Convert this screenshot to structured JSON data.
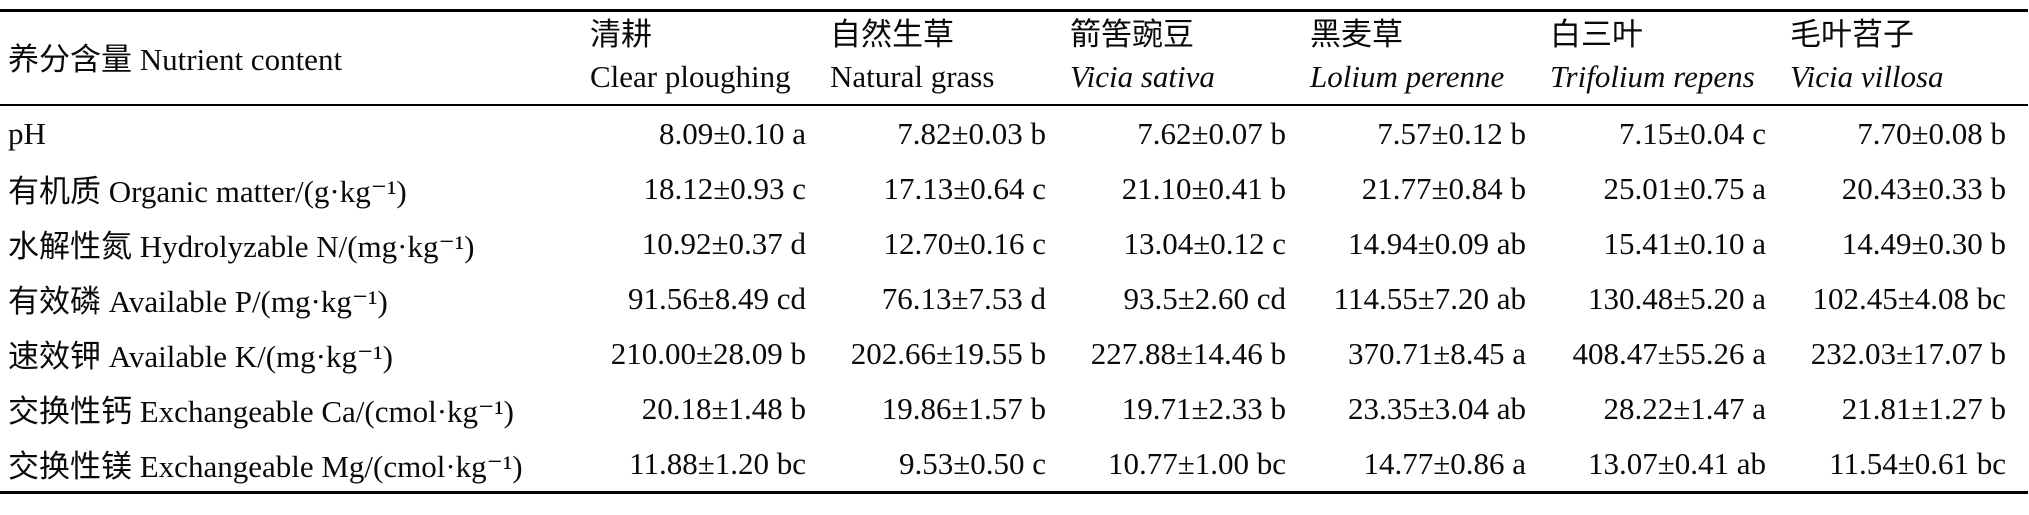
{
  "colors": {
    "background": "#ffffff",
    "text": "#0a0a0a",
    "rule": "#000000"
  },
  "table": {
    "corner_label": "养分含量 Nutrient content",
    "columns": [
      {
        "zh": "清耕",
        "en": "Clear ploughing"
      },
      {
        "zh": "自然生草",
        "en": "Natural grass"
      },
      {
        "zh": "箭筈豌豆",
        "en": "Vicia sativa"
      },
      {
        "zh": "黑麦草",
        "en": "Lolium perenne"
      },
      {
        "zh": "白三叶",
        "en": "Trifolium repens"
      },
      {
        "zh": "毛叶苕子",
        "en": "Vicia villosa"
      }
    ],
    "rows": [
      {
        "label": "pH",
        "values": [
          "8.09±0.10 a",
          "7.82±0.03 b",
          "7.62±0.07 b",
          "7.57±0.12 b",
          "7.15±0.04 c",
          "7.70±0.08 b"
        ]
      },
      {
        "label": "有机质 Organic matter/(g·kg⁻¹)",
        "values": [
          "18.12±0.93 c",
          "17.13±0.64 c",
          "21.10±0.41 b",
          "21.77±0.84 b",
          "25.01±0.75 a",
          "20.43±0.33 b"
        ]
      },
      {
        "label": "水解性氮 Hydrolyzable N/(mg·kg⁻¹)",
        "values": [
          "10.92±0.37 d",
          "12.70±0.16 c",
          "13.04±0.12 c",
          "14.94±0.09 ab",
          "15.41±0.10 a",
          "14.49±0.30 b"
        ]
      },
      {
        "label": "有效磷 Available P/(mg·kg⁻¹)",
        "values": [
          "91.56±8.49 cd",
          "76.13±7.53 d",
          "93.5±2.60 cd",
          "114.55±7.20 ab",
          "130.48±5.20 a",
          "102.45±4.08 bc"
        ]
      },
      {
        "label": "速效钾 Available K/(mg·kg⁻¹)",
        "values": [
          "210.00±28.09 b",
          "202.66±19.55 b",
          "227.88±14.46 b",
          "370.71±8.45 a",
          "408.47±55.26 a",
          "232.03±17.07 b"
        ]
      },
      {
        "label": "交换性钙 Exchangeable Ca/(cmol·kg⁻¹)",
        "values": [
          "20.18±1.48 b",
          "19.86±1.57 b",
          "19.71±2.33 b",
          "23.35±3.04 ab",
          "28.22±1.47 a",
          "21.81±1.27 b"
        ]
      },
      {
        "label": "交换性镁 Exchangeable Mg/(cmol·kg⁻¹)",
        "values": [
          "11.88±1.20 bc",
          "9.53±0.50 c",
          "10.77±1.00 bc",
          "14.77±0.86 a",
          "13.07±0.41 ab",
          "11.54±0.61 bc"
        ]
      }
    ]
  }
}
